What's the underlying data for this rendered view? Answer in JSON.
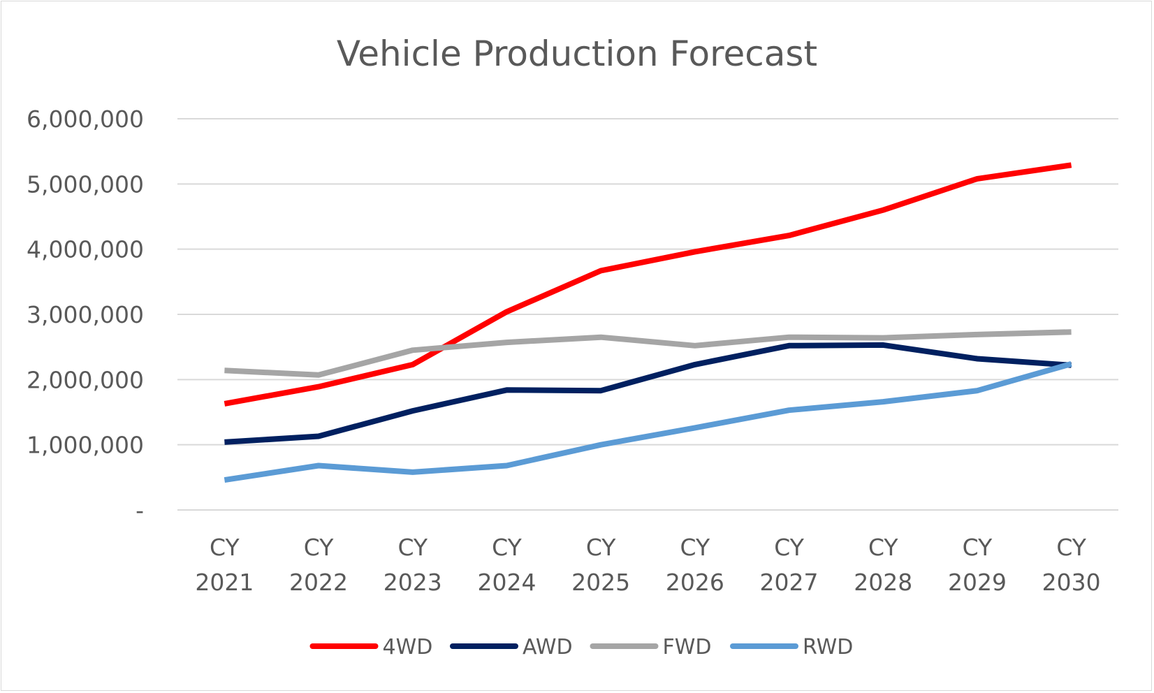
{
  "chart_data": {
    "type": "line",
    "title": "Vehicle Production Forecast",
    "xlabel": "",
    "ylabel": "",
    "ylim": [
      0,
      6000000
    ],
    "yticks": [
      0,
      1000000,
      2000000,
      3000000,
      4000000,
      5000000,
      6000000
    ],
    "ytick_labels": [
      "-",
      "1,000,000",
      "2,000,000",
      "3,000,000",
      "4,000,000",
      "5,000,000",
      "6,000,000"
    ],
    "categories": [
      [
        "CY",
        "2021"
      ],
      [
        "CY",
        "2022"
      ],
      [
        "CY",
        "2023"
      ],
      [
        "CY",
        "2024"
      ],
      [
        "CY",
        "2025"
      ],
      [
        "CY",
        "2026"
      ],
      [
        "CY",
        "2027"
      ],
      [
        "CY",
        "2028"
      ],
      [
        "CY",
        "2029"
      ],
      [
        "CY",
        "2030"
      ]
    ],
    "grid": "horizontal",
    "legend_position": "bottom",
    "series": [
      {
        "name": "4WD",
        "color": "#ff0000",
        "values": [
          1630000,
          1890000,
          2230000,
          3040000,
          3670000,
          3960000,
          4210000,
          4600000,
          5080000,
          5290000
        ]
      },
      {
        "name": "AWD",
        "color": "#002060",
        "values": [
          1040000,
          1130000,
          1520000,
          1840000,
          1830000,
          2230000,
          2520000,
          2530000,
          2320000,
          2220000
        ]
      },
      {
        "name": "FWD",
        "color": "#a5a5a5",
        "values": [
          2140000,
          2070000,
          2450000,
          2570000,
          2650000,
          2520000,
          2650000,
          2640000,
          2690000,
          2730000
        ]
      },
      {
        "name": "RWD",
        "color": "#5b9bd5",
        "values": [
          460000,
          680000,
          580000,
          680000,
          1000000,
          1260000,
          1530000,
          1660000,
          1830000,
          2240000
        ]
      }
    ]
  }
}
